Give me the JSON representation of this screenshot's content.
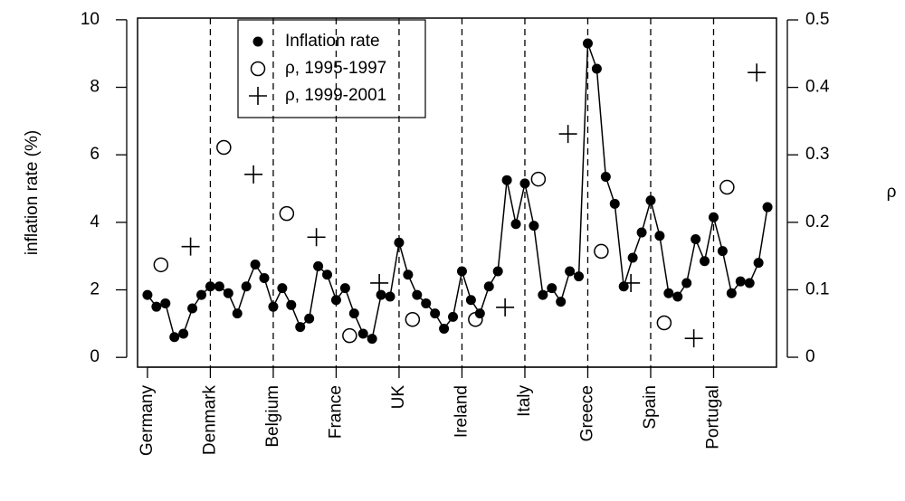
{
  "chart_data": {
    "type": "line",
    "ylabel": "inflation rate (%)",
    "y2label": "ρ",
    "xlim": [
      -1.1,
      70
    ],
    "xticks": [
      {
        "value": 0,
        "label": "Germany"
      },
      {
        "value": 7,
        "label": "Denmark"
      },
      {
        "value": 14,
        "label": "Belgium"
      },
      {
        "value": 21,
        "label": "France"
      },
      {
        "value": 28,
        "label": "UK"
      },
      {
        "value": 35,
        "label": "Ireland"
      },
      {
        "value": 42,
        "label": "Italy"
      },
      {
        "value": 49,
        "label": "Greece"
      },
      {
        "value": 56,
        "label": "Spain"
      },
      {
        "value": 63,
        "label": "Portugal"
      }
    ],
    "ylim": [
      -0.29,
      10.05
    ],
    "yticks": [
      0,
      2,
      4,
      6,
      8,
      10
    ],
    "y2lim": [
      -0.0147,
      0.5027
    ],
    "y2ticks": [
      0,
      0.1,
      0.2,
      0.3,
      0.4,
      0.5
    ],
    "dividers": "dashed",
    "series": [
      {
        "name": "Inflation rate",
        "marker": "dot-line",
        "color": "#000",
        "x": [
          0,
          1,
          2,
          3,
          4,
          5,
          6,
          7,
          8,
          9,
          10,
          11,
          12,
          13,
          14,
          15,
          16,
          17,
          18,
          19,
          20,
          21,
          22,
          23,
          24,
          25,
          26,
          27,
          28,
          29,
          30,
          31,
          32,
          33,
          34,
          35,
          36,
          37,
          38,
          39,
          40,
          41,
          42,
          43,
          44,
          45,
          46,
          47,
          48,
          49,
          50,
          51,
          52,
          53,
          54,
          55,
          56,
          57,
          58,
          59,
          60,
          61,
          62,
          63,
          64,
          65,
          66,
          67,
          68,
          69
        ],
        "values": [
          1.85,
          1.5,
          1.6,
          0.6,
          0.7,
          1.45,
          1.85,
          2.1,
          2.1,
          1.9,
          1.3,
          2.1,
          2.75,
          2.35,
          1.5,
          2.05,
          1.55,
          0.9,
          1.15,
          2.7,
          2.45,
          1.7,
          2.05,
          1.3,
          0.7,
          0.55,
          1.85,
          1.8,
          3.4,
          2.45,
          1.85,
          1.6,
          1.3,
          0.85,
          1.2,
          2.55,
          1.7,
          1.3,
          2.1,
          2.55,
          5.25,
          3.95,
          5.15,
          3.9,
          1.85,
          2.05,
          1.65,
          2.55,
          2.4,
          9.3,
          8.55,
          5.35,
          4.55,
          2.1,
          2.95,
          3.7,
          4.65,
          3.6,
          1.9,
          1.8,
          2.2,
          3.5,
          2.85,
          4.15,
          3.15,
          1.9,
          2.25,
          2.2,
          2.8,
          4.45
        ]
      },
      {
        "name": "ρ, 1995-1997",
        "marker": "circle",
        "axis": "y2",
        "color": "#000",
        "x": [
          1.5,
          8.5,
          15.5,
          22.5,
          29.5,
          36.5,
          43.5,
          50.5,
          57.5,
          64.5
        ],
        "values": [
          0.137,
          0.311,
          0.213,
          0.032,
          0.056,
          0.056,
          0.264,
          0.157,
          0.051,
          0.252
        ]
      },
      {
        "name": "ρ, 1999-2001",
        "marker": "plus",
        "axis": "y2",
        "color": "#000",
        "x": [
          4.8,
          11.8,
          18.8,
          25.8,
          39.8,
          46.8,
          53.8,
          60.8,
          67.8
        ],
        "values": [
          0.164,
          0.271,
          0.178,
          0.11,
          0.074,
          0.331,
          0.11,
          0.028,
          0.422
        ]
      }
    ]
  }
}
